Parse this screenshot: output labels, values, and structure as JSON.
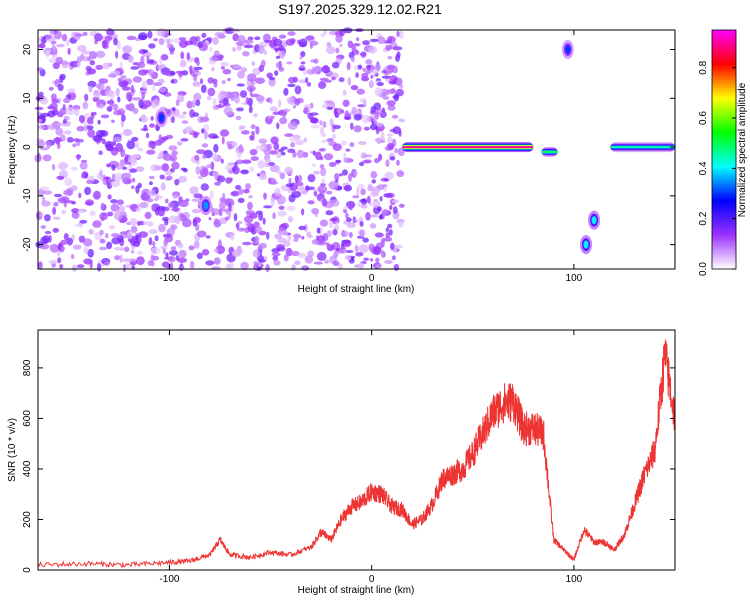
{
  "title": "S197.2025.329.12.02.R21",
  "chart_data": [
    {
      "type": "heatmap",
      "xlabel": "Height of straight line (km)",
      "ylabel": "Frequency (Hz)",
      "xlim": [
        -165,
        150
      ],
      "ylim": [
        -25,
        24
      ],
      "x_ticks": [
        "-100",
        "0",
        "100"
      ],
      "y_ticks": [
        "-20",
        "-10",
        "0",
        "10",
        "20"
      ],
      "colorbar": {
        "label": "Normalized spectral amplitude",
        "range": [
          0.0,
          0.95
        ],
        "ticks": [
          "0.0",
          "0.2",
          "0.4",
          "0.6",
          "0.8"
        ],
        "colormap": [
          "#ffffff",
          "#9b30ff",
          "#0000ff",
          "#00ffff",
          "#00ff00",
          "#ffff00",
          "#ff0000",
          "#ff00ff"
        ]
      },
      "features": [
        {
          "kind": "noise-band",
          "x_range": [
            -165,
            15
          ],
          "y_range": [
            -25,
            24
          ],
          "amplitude": 0.15
        },
        {
          "kind": "ridge",
          "x_range": [
            15,
            80
          ],
          "y": 0,
          "amplitude": 0.9
        },
        {
          "kind": "ridge",
          "x_range": [
            84,
            92
          ],
          "y": -1,
          "amplitude": 0.5
        },
        {
          "kind": "ridge",
          "x_range": [
            118,
            150
          ],
          "y": 0,
          "amplitude": 0.45
        },
        {
          "kind": "spot",
          "x": -104,
          "y": 6,
          "amplitude": 0.3
        },
        {
          "kind": "spot",
          "x": -82,
          "y": -12,
          "amplitude": 0.35
        },
        {
          "kind": "spot",
          "x": 97,
          "y": 20,
          "amplitude": 0.3
        },
        {
          "kind": "spot",
          "x": 110,
          "y": -15,
          "amplitude": 0.4
        },
        {
          "kind": "spot",
          "x": 106,
          "y": -20,
          "amplitude": 0.4
        }
      ]
    },
    {
      "type": "line",
      "xlabel": "Height of straight line (km)",
      "ylabel": "SNR (10 * v/v)",
      "xlim": [
        -165,
        150
      ],
      "ylim": [
        0,
        950
      ],
      "x_ticks": [
        "-100",
        "0",
        "100"
      ],
      "y_ticks": [
        "0",
        "200",
        "400",
        "600",
        "800"
      ],
      "series": [
        {
          "color": "#ee3333",
          "x": [
            -165,
            -140,
            -120,
            -100,
            -90,
            -80,
            -75,
            -70,
            -60,
            -50,
            -40,
            -30,
            -25,
            -20,
            -15,
            -10,
            -5,
            0,
            5,
            10,
            15,
            20,
            25,
            30,
            35,
            40,
            45,
            50,
            55,
            60,
            65,
            70,
            75,
            80,
            85,
            90,
            95,
            100,
            105,
            110,
            115,
            120,
            125,
            130,
            135,
            140,
            145,
            150
          ],
          "y": [
            20,
            25,
            20,
            30,
            35,
            60,
            120,
            60,
            50,
            70,
            60,
            90,
            150,
            120,
            200,
            250,
            270,
            310,
            300,
            250,
            240,
            180,
            200,
            260,
            360,
            380,
            400,
            460,
            540,
            620,
            660,
            670,
            560,
            560,
            540,
            120,
            80,
            40,
            160,
            110,
            110,
            80,
            140,
            260,
            380,
            470,
            850,
            600
          ]
        }
      ]
    }
  ]
}
